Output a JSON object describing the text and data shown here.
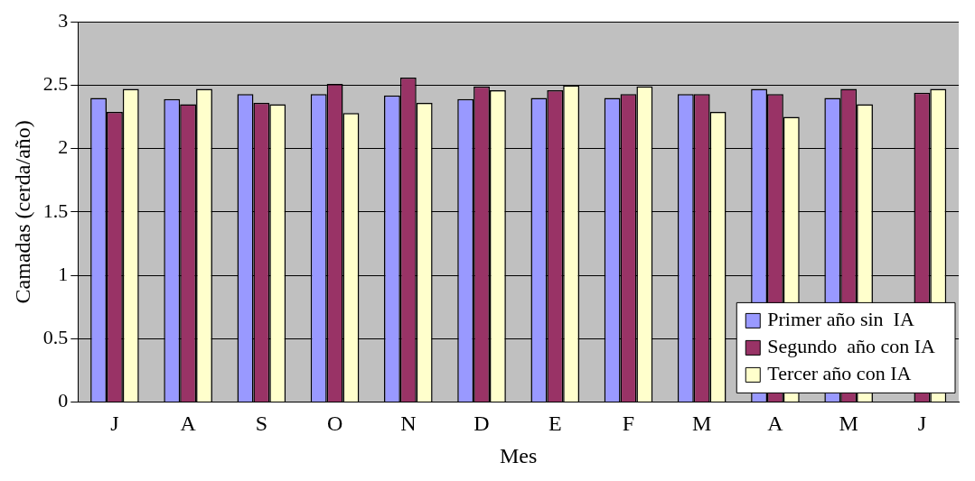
{
  "chart_data": {
    "type": "bar",
    "xlabel": "Mes",
    "ylabel": "Camadas (cerda/año)",
    "categories": [
      "J",
      "A",
      "S",
      "O",
      "N",
      "D",
      "E",
      "F",
      "M",
      "A",
      "M",
      "J"
    ],
    "series": [
      {
        "name": "Primer año sin  IA",
        "color": "#9999ff",
        "values": [
          2.4,
          2.39,
          2.43,
          2.43,
          2.42,
          2.39,
          2.4,
          2.4,
          2.43,
          2.47,
          2.4,
          null
        ]
      },
      {
        "name": "Segundo  año con IA",
        "color": "#993366",
        "values": [
          2.29,
          2.35,
          2.36,
          2.51,
          2.56,
          2.49,
          2.46,
          2.43,
          2.43,
          2.43,
          2.47,
          2.44
        ]
      },
      {
        "name": "Tercer año con IA",
        "color": "#ffffcc",
        "values": [
          2.47,
          2.47,
          2.35,
          2.28,
          2.36,
          2.46,
          2.5,
          2.49,
          2.29,
          2.25,
          2.35,
          2.47
        ]
      }
    ],
    "ylim": [
      0,
      3
    ],
    "yticks": [
      0,
      0.5,
      1,
      1.5,
      2,
      2.5,
      3
    ],
    "grid": "y",
    "legend": "bottom right"
  }
}
